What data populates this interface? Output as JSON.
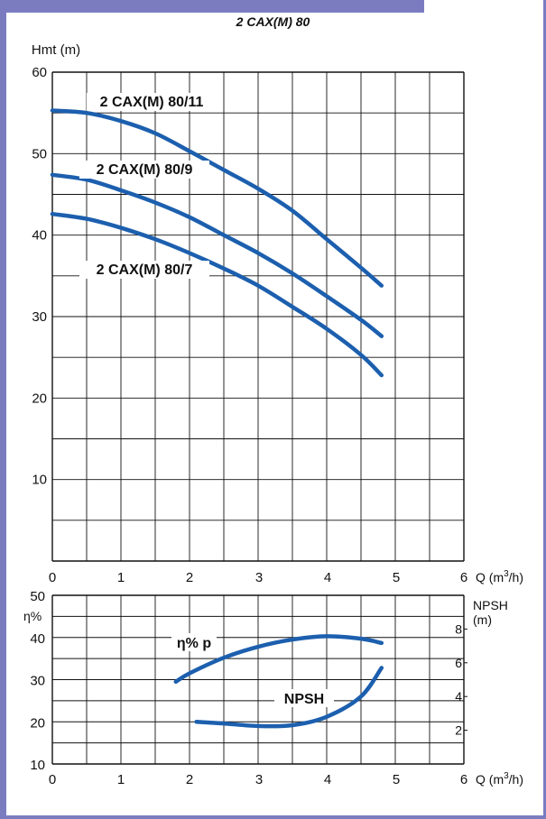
{
  "chart_data": [
    {
      "type": "line",
      "title": "2 CAX(M) 80",
      "ylabel": "Hmt (m)",
      "xlabel": "Q (m3/h)",
      "x_ticks": [
        "0",
        "1",
        "2",
        "3",
        "4",
        "5",
        "6"
      ],
      "y_ticks": [
        "10",
        "20",
        "30",
        "40",
        "50",
        "60"
      ],
      "xlim": [
        0,
        6
      ],
      "ylim": [
        0,
        60
      ],
      "grid": true,
      "series": [
        {
          "name": "2 CAX(M) 80/11",
          "x": [
            0,
            0.5,
            1,
            1.5,
            2,
            2.5,
            3,
            3.5,
            4,
            4.5,
            4.8
          ],
          "y": [
            55.3,
            55,
            54,
            52.5,
            50.3,
            48,
            45.7,
            43,
            39.5,
            36,
            33.8
          ]
        },
        {
          "name": "2 CAX(M) 80/9",
          "x": [
            0,
            0.5,
            1,
            1.5,
            2,
            2.5,
            3,
            3.5,
            4,
            4.5,
            4.8
          ],
          "y": [
            47.4,
            46.8,
            45.5,
            44,
            42.2,
            40,
            37.8,
            35.3,
            32.5,
            29.6,
            27.6
          ]
        },
        {
          "name": "2 CAX(M) 80/7",
          "x": [
            0,
            0.5,
            1,
            1.5,
            2,
            2.5,
            3,
            3.5,
            4,
            4.5,
            4.8
          ],
          "y": [
            42.6,
            42,
            40.9,
            39.5,
            37.8,
            35.9,
            33.8,
            31.2,
            28.5,
            25.3,
            22.8
          ]
        }
      ],
      "color": "#1c5fae"
    },
    {
      "type": "line",
      "ylabel": "η%",
      "y2label": "NPSH (m)",
      "xlabel": "Q (m3/h)",
      "x_ticks": [
        "0",
        "1",
        "2",
        "3",
        "4",
        "5",
        "6"
      ],
      "y_ticks": [
        "10",
        "20",
        "30",
        "40",
        "50"
      ],
      "y2_ticks": [
        "2",
        "4",
        "6",
        "8"
      ],
      "xlim": [
        0,
        6
      ],
      "ylim": [
        10,
        50
      ],
      "y2lim": [
        0,
        10
      ],
      "grid": true,
      "series": [
        {
          "name": "η% p",
          "axis": "left",
          "x": [
            1.8,
            2.0,
            2.5,
            3.0,
            3.5,
            4.0,
            4.5,
            4.8
          ],
          "y": [
            29.5,
            31.5,
            35.2,
            37.8,
            39.5,
            40.3,
            39.7,
            38.7
          ]
        },
        {
          "name": "NPSH",
          "axis": "right",
          "x": [
            2.1,
            2.5,
            3.0,
            3.5,
            4.0,
            4.5,
            4.8
          ],
          "y": [
            2.5,
            2.4,
            2.25,
            2.3,
            2.8,
            4.0,
            5.7
          ]
        }
      ],
      "color": "#1c5fae"
    }
  ],
  "labels": {
    "title": "2 CAX(M) 80",
    "top_ylabel": "Hmt (m)",
    "xlabel_q": "Q (m",
    "xlabel_sup": "3",
    "xlabel_end": "/h)",
    "bottom_ylabel": "η%",
    "npsh_label": "NPSH",
    "npsh_unit": "(m)"
  }
}
